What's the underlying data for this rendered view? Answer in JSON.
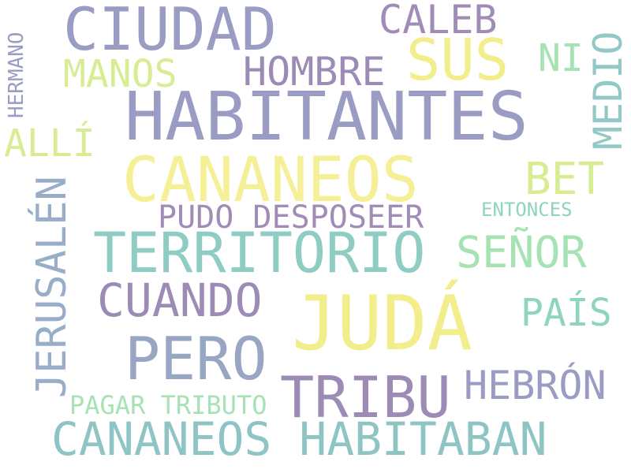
{
  "palette": {
    "purple": "#9b8bb5",
    "slate": "#9a9cc4",
    "yellow": "#f2ee8c",
    "lime": "#d8ec94",
    "mint": "#a6e2b4",
    "teal": "#8fcdc4",
    "steel": "#98a6c4"
  },
  "words": [
    {
      "id": "ciudad",
      "text": "CIUDAD",
      "color": "#9a9cc4",
      "orientation": "horizontal"
    },
    {
      "id": "caleb",
      "text": "CALEB",
      "color": "#a08cb5",
      "orientation": "horizontal"
    },
    {
      "id": "sus",
      "text": "SUS",
      "color": "#f2ee8c",
      "orientation": "horizontal"
    },
    {
      "id": "ni",
      "text": "NI",
      "color": "#a6e2b4",
      "orientation": "horizontal"
    },
    {
      "id": "medio",
      "text": "MEDIO",
      "color": "#92c9c7",
      "orientation": "vertical"
    },
    {
      "id": "hermano",
      "text": "HERMANO",
      "color": "#9a9cc4",
      "orientation": "vertical"
    },
    {
      "id": "manos",
      "text": "MANOS",
      "color": "#d8ec94",
      "orientation": "horizontal"
    },
    {
      "id": "hombre",
      "text": "HOMBRE",
      "color": "#9b8bb5",
      "orientation": "horizontal"
    },
    {
      "id": "habitantes",
      "text": "HABITANTES",
      "color": "#9a9cc4",
      "orientation": "horizontal"
    },
    {
      "id": "alli",
      "text": "ALLÍ",
      "color": "#d8ec94",
      "orientation": "horizontal"
    },
    {
      "id": "cananeos",
      "text": "CANANEOS",
      "color": "#f5ef96",
      "orientation": "horizontal"
    },
    {
      "id": "bet",
      "text": "BET",
      "color": "#d8ec94",
      "orientation": "horizontal"
    },
    {
      "id": "jerusalen",
      "text": "JERUSALÉN",
      "color": "#98aec8",
      "orientation": "vertical"
    },
    {
      "id": "pudo-desposeer",
      "text": "PUDO DESPOSEER",
      "color": "#a08cb5",
      "orientation": "horizontal"
    },
    {
      "id": "entonces",
      "text": "ENTONCES",
      "color": "#8fd4c0",
      "orientation": "horizontal"
    },
    {
      "id": "territorio",
      "text": "TERRITORIO",
      "color": "#8fcdc4",
      "orientation": "horizontal"
    },
    {
      "id": "senor",
      "text": "SEÑOR",
      "color": "#a6e2b4",
      "orientation": "horizontal"
    },
    {
      "id": "cuando",
      "text": "CUANDO",
      "color": "#9b8bb5",
      "orientation": "horizontal"
    },
    {
      "id": "juda",
      "text": "JUDÁ",
      "color": "#f2ee8c",
      "orientation": "horizontal"
    },
    {
      "id": "pais",
      "text": "PAÍS",
      "color": "#8fd4c0",
      "orientation": "horizontal"
    },
    {
      "id": "pero",
      "text": "PERO",
      "color": "#98a6c4",
      "orientation": "horizontal"
    },
    {
      "id": "tribu",
      "text": "TRIBU",
      "color": "#9b8bb5",
      "orientation": "horizontal"
    },
    {
      "id": "hebron",
      "text": "HEBRÓN",
      "color": "#9a9cc4",
      "orientation": "horizontal"
    },
    {
      "id": "pagar-tributo",
      "text": "PAGAR TRIBUTO",
      "color": "#a6e2b4",
      "orientation": "horizontal"
    },
    {
      "id": "cananeos-habitaban",
      "text": "CANANEOS HABITABAN",
      "color": "#8fc4c4",
      "orientation": "horizontal"
    }
  ]
}
